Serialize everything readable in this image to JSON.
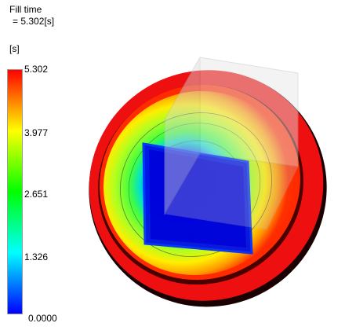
{
  "result": {
    "title": "Fill time",
    "value_line": " = 5.302[s]",
    "unit": "[s]"
  },
  "legend": {
    "ticks": [
      "5.302",
      "3.977",
      "2.651",
      "1.326",
      "0.0000"
    ],
    "max_color": "#ff0000",
    "min_color": "#0000ff"
  },
  "model": {
    "part": "round-dish",
    "gate_region_color": "#0000ff",
    "rim_color": "#ff0000"
  }
}
